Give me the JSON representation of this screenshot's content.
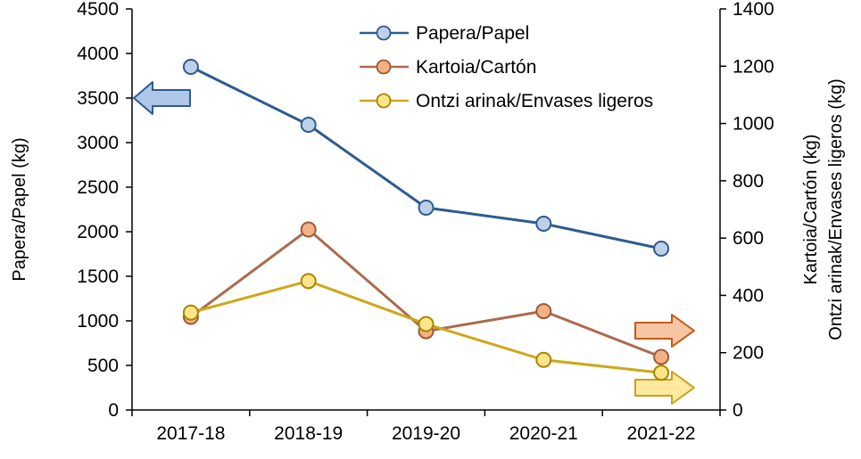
{
  "chart_data": {
    "type": "line",
    "title": "",
    "categories": [
      "2017-18",
      "2018-19",
      "2019-20",
      "2020-21",
      "2021-22"
    ],
    "series": [
      {
        "name": "Papera/Papel",
        "axis": "left",
        "values": [
          3850,
          3200,
          2270,
          2090,
          1810
        ],
        "line_color": "#2E5B8F",
        "marker_fill": "#BDD0E9",
        "marker_stroke": "#2E5B8F"
      },
      {
        "name": "Kartoia/Cartón",
        "axis": "right",
        "values": [
          325,
          630,
          275,
          345,
          185
        ],
        "line_color": "#AD6A4D",
        "marker_fill": "#F4B183",
        "marker_stroke": "#9C5B38"
      },
      {
        "name": "Ontzi arinak/Envases ligeros",
        "axis": "right",
        "values": [
          340,
          450,
          300,
          175,
          130
        ],
        "line_color": "#CFA718",
        "marker_fill": "#FFE48A",
        "marker_stroke": "#A98500"
      }
    ],
    "left_axis": {
      "label": "Papera/Papel (kg)",
      "min": 0,
      "max": 4500,
      "step": 500
    },
    "right_axis": {
      "labels": [
        "Kartoia/Cartón (kg)",
        "Ontzi arinak/Envases ligeros (kg)"
      ],
      "min": 0,
      "max": 1400,
      "step": 200
    },
    "legend_position": "top-center",
    "grid": false,
    "axis_color": "#000000",
    "annotations": [
      {
        "name": "left-axis-arrow",
        "direction": "left",
        "fill": "#AEC6E8",
        "stroke": "#2E5B8F"
      },
      {
        "name": "carton-axis-arrow",
        "direction": "right",
        "fill": "#F6C5A4",
        "stroke": "#C55A11"
      },
      {
        "name": "envases-axis-arrow",
        "direction": "right",
        "fill": "#FFE9A0",
        "stroke": "#C9A21B"
      }
    ]
  }
}
